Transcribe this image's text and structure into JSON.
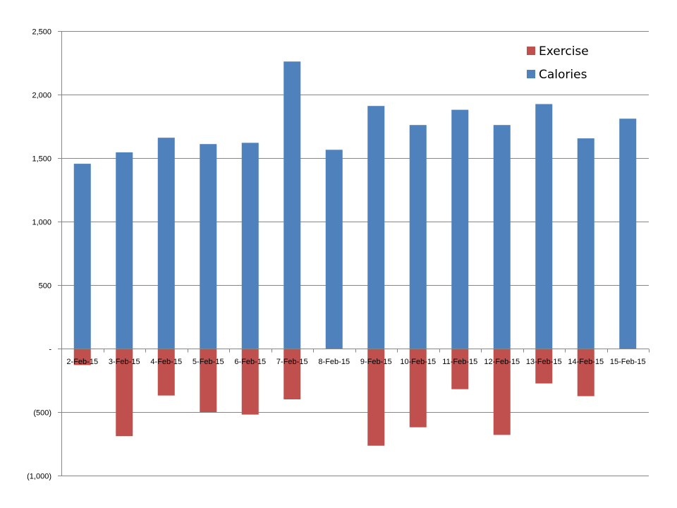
{
  "chart_data": {
    "type": "bar",
    "stacked": true,
    "categories": [
      "2-Feb-15",
      "3-Feb-15",
      "4-Feb-15",
      "5-Feb-15",
      "6-Feb-15",
      "7-Feb-15",
      "8-Feb-15",
      "9-Feb-15",
      "10-Feb-15",
      "11-Feb-15",
      "12-Feb-15",
      "13-Feb-15",
      "14-Feb-15",
      "15-Feb-15"
    ],
    "series": [
      {
        "name": "Exercise",
        "color": "#c0504d",
        "values": [
          -130,
          -690,
          -370,
          -500,
          -520,
          -400,
          0,
          -765,
          -620,
          -320,
          -680,
          -275,
          -375,
          0
        ]
      },
      {
        "name": "Calories",
        "color": "#4f81bd",
        "values": [
          1455,
          1545,
          1660,
          1610,
          1620,
          2260,
          1565,
          1910,
          1760,
          1880,
          1760,
          1925,
          1655,
          1810
        ]
      }
    ],
    "y_ticks": [
      {
        "value": 2500,
        "label": "2,500"
      },
      {
        "value": 2000,
        "label": "2,000"
      },
      {
        "value": 1500,
        "label": "1,500"
      },
      {
        "value": 1000,
        "label": "1,000"
      },
      {
        "value": 500,
        "label": "500"
      },
      {
        "value": 0,
        "label": "-"
      },
      {
        "value": -500,
        "label": "(500)"
      },
      {
        "value": -1000,
        "label": "(1,000)"
      }
    ],
    "ylim": [
      -1000,
      2500
    ],
    "grid": true,
    "legend_position": "top-right",
    "title": "",
    "xlabel": "",
    "ylabel": ""
  }
}
